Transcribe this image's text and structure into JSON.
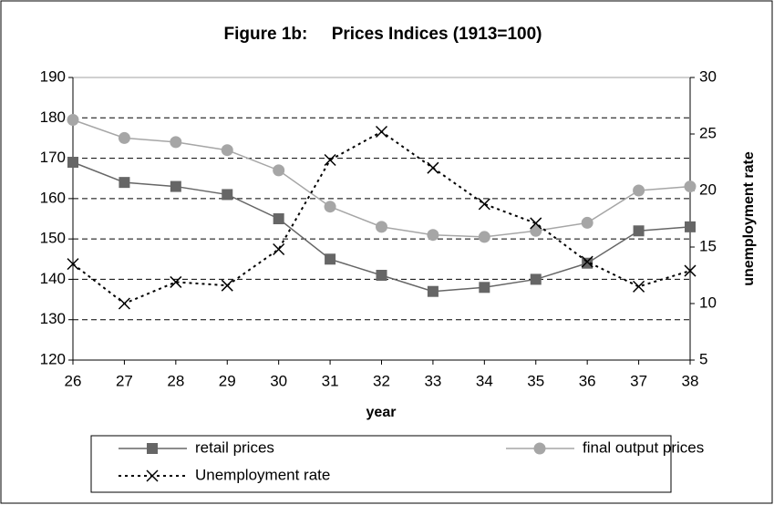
{
  "chart_data": {
    "type": "line",
    "title": "Figure 1b:     Prices Indices (1913=100)",
    "x_label": "year",
    "y2_label": "unemployment rate",
    "x": [
      26,
      27,
      28,
      29,
      30,
      31,
      32,
      33,
      34,
      35,
      36,
      37,
      38
    ],
    "xlim": [
      26,
      38
    ],
    "xticks": [
      26,
      27,
      28,
      29,
      30,
      31,
      32,
      33,
      34,
      35,
      36,
      37,
      38
    ],
    "ylim": [
      120,
      190
    ],
    "yticks": [
      120,
      130,
      140,
      150,
      160,
      170,
      180,
      190
    ],
    "y2lim": [
      5,
      30
    ],
    "y2ticks": [
      5,
      10,
      15,
      20,
      25,
      30
    ],
    "grid": true,
    "legend": "bottom",
    "series": [
      {
        "name": "retail prices",
        "color": "#666666",
        "marker": "square",
        "dash": "solid",
        "values": [
          169,
          164,
          163,
          161,
          155,
          145,
          141,
          137,
          138,
          140,
          144,
          152,
          153
        ]
      },
      {
        "name": "final output prices",
        "color": "#a6a6a6",
        "marker": "circle",
        "dash": "solid",
        "values": [
          179.5,
          175,
          174,
          172,
          167,
          158,
          153,
          151,
          150.5,
          152,
          154,
          162,
          163
        ]
      },
      {
        "name": "Unemployment rate",
        "color": "#000000",
        "marker": "x",
        "dash": "dotted",
        "axis": "y2",
        "values": [
          13.5,
          10,
          11.9,
          11.6,
          14.8,
          22.7,
          25.2,
          22,
          18.8,
          17.1,
          13.7,
          11.5,
          12.9
        ]
      }
    ]
  }
}
